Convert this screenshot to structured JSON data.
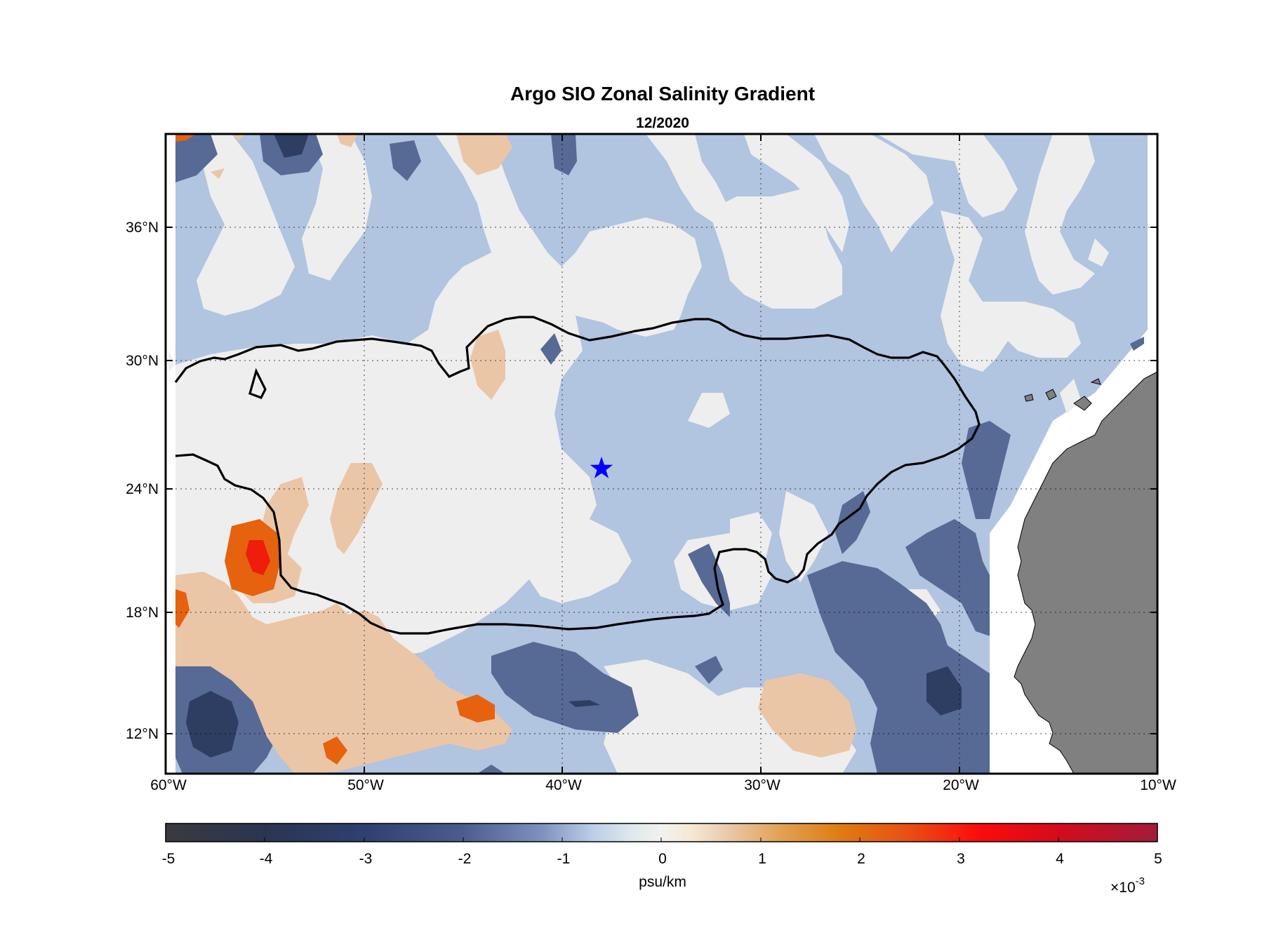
{
  "title": "Argo SIO Zonal Salinity Gradient",
  "subtitle": "12/2020",
  "map": {
    "lon_range": [
      -60,
      -10
    ],
    "lat_range": [
      10,
      40
    ],
    "x_ticks": [
      {
        "lon": -60,
        "label": "60°W"
      },
      {
        "lon": -50,
        "label": "50°W"
      },
      {
        "lon": -40,
        "label": "40°W"
      },
      {
        "lon": -30,
        "label": "30°W"
      },
      {
        "lon": -20,
        "label": "20°W"
      },
      {
        "lon": -10,
        "label": "10°W"
      }
    ],
    "y_ticks": [
      {
        "lat": 12,
        "label": "12°N"
      },
      {
        "lat": 18,
        "label": "18°N"
      },
      {
        "lat": 24,
        "label": "24°N"
      },
      {
        "lat": 30,
        "label": "30°N"
      },
      {
        "lat": 36,
        "label": "36°N"
      }
    ],
    "grid": "dotted",
    "land_color": "#808080",
    "marker": {
      "lon": -38.0,
      "lat": 25.0,
      "symbol": "star",
      "color": "#0000ff"
    }
  },
  "colorbar": {
    "label": "psu/km",
    "scale_base": "×10",
    "scale_exp": "-3",
    "range": [
      -5,
      5
    ],
    "ticks": [
      "-5",
      "-4",
      "-3",
      "-2",
      "-1",
      "0",
      "1",
      "2",
      "3",
      "4",
      "5"
    ],
    "colors": {
      "level_-4": "#2d3e62",
      "level_-3": "#566a95",
      "level_-1": "#b1c4e0",
      "level_0": "#eeeeee",
      "level_1": "#eac6a7",
      "level_2": "#e6620f",
      "level_3": "#f01c0c"
    }
  }
}
